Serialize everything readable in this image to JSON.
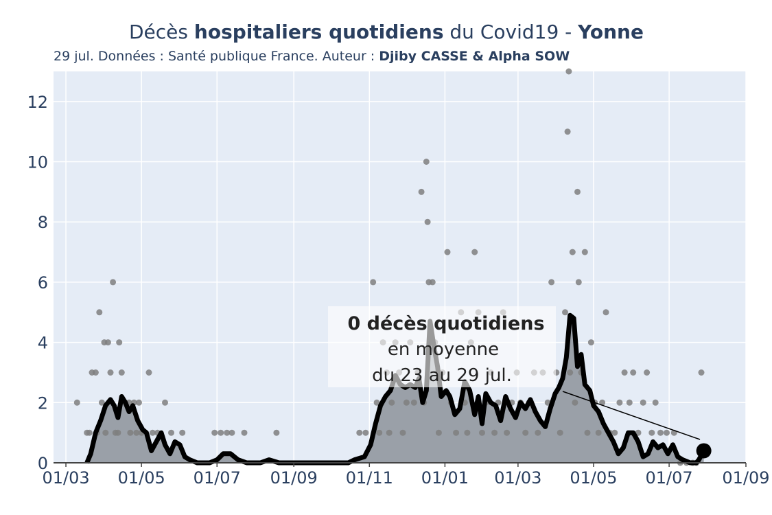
{
  "header": {
    "title_part1": "Décès ",
    "title_bold": "hospitaliers quotidiens",
    "title_part2": " du Covid19 - ",
    "title_region": "Yonne",
    "subtitle_part1": "29 jul. Données : Santé publique France. Auteur : ",
    "subtitle_authors": "Djiby CASSE & Alpha SOW"
  },
  "annotation": {
    "line1": "0 décès quotidiens",
    "line2": "en moyenne",
    "line3": "du 23 au 29 jul."
  },
  "colors": {
    "plot_bg": "#e5ecf6",
    "grid": "#ffffff",
    "area_fill": "#9aa0a8",
    "avg_line": "#000000",
    "dots": "#7f7f7f",
    "text": "#2a3f5f"
  },
  "chart_data": {
    "type": "area",
    "title": "Décès hospitaliers quotidiens du Covid19 - Yonne",
    "xlabel": "",
    "ylabel": "",
    "x_ticks": [
      {
        "date": "2020-03-01",
        "label": "01/03"
      },
      {
        "date": "2020-05-01",
        "label": "01/05"
      },
      {
        "date": "2020-07-01",
        "label": "01/07"
      },
      {
        "date": "2020-09-01",
        "label": "01/09"
      },
      {
        "date": "2020-11-01",
        "label": "01/11"
      },
      {
        "date": "2021-01-01",
        "label": "01/01"
      },
      {
        "date": "2021-03-01",
        "label": "01/03"
      },
      {
        "date": "2021-05-01",
        "label": "01/05"
      },
      {
        "date": "2021-07-01",
        "label": "01/07"
      },
      {
        "date": "2021-09-01",
        "label": "01/09"
      }
    ],
    "y_ticks": [
      0,
      2,
      4,
      6,
      8,
      10,
      12
    ],
    "xlim": [
      "2020-02-20",
      "2021-09-01"
    ],
    "ylim": [
      0,
      13
    ],
    "grid": true,
    "legend": "none",
    "series": [
      {
        "kind": "rolling_average",
        "points": [
          [
            "2020-03-18",
            0
          ],
          [
            "2020-03-21",
            0.3
          ],
          [
            "2020-03-25",
            1.0
          ],
          [
            "2020-03-29",
            1.4
          ],
          [
            "2020-04-02",
            1.9
          ],
          [
            "2020-04-06",
            2.1
          ],
          [
            "2020-04-09",
            1.9
          ],
          [
            "2020-04-12",
            1.5
          ],
          [
            "2020-04-15",
            2.2
          ],
          [
            "2020-04-18",
            2.0
          ],
          [
            "2020-04-21",
            1.7
          ],
          [
            "2020-04-24",
            1.9
          ],
          [
            "2020-04-28",
            1.4
          ],
          [
            "2020-05-02",
            1.1
          ],
          [
            "2020-05-05",
            1.0
          ],
          [
            "2020-05-09",
            0.4
          ],
          [
            "2020-05-13",
            0.7
          ],
          [
            "2020-05-17",
            1.0
          ],
          [
            "2020-05-20",
            0.6
          ],
          [
            "2020-05-24",
            0.3
          ],
          [
            "2020-05-28",
            0.7
          ],
          [
            "2020-06-01",
            0.6
          ],
          [
            "2020-06-05",
            0.2
          ],
          [
            "2020-06-09",
            0.1
          ],
          [
            "2020-06-15",
            0
          ],
          [
            "2020-06-25",
            0
          ],
          [
            "2020-07-01",
            0.1
          ],
          [
            "2020-07-06",
            0.3
          ],
          [
            "2020-07-12",
            0.3
          ],
          [
            "2020-07-18",
            0.1
          ],
          [
            "2020-07-25",
            0
          ],
          [
            "2020-08-05",
            0
          ],
          [
            "2020-08-12",
            0.1
          ],
          [
            "2020-08-20",
            0
          ],
          [
            "2020-10-15",
            0
          ],
          [
            "2020-10-20",
            0.1
          ],
          [
            "2020-10-28",
            0.2
          ],
          [
            "2020-11-02",
            0.6
          ],
          [
            "2020-11-06",
            1.3
          ],
          [
            "2020-11-10",
            1.9
          ],
          [
            "2020-11-14",
            2.2
          ],
          [
            "2020-11-18",
            2.4
          ],
          [
            "2020-11-22",
            2.9
          ],
          [
            "2020-11-26",
            2.6
          ],
          [
            "2020-11-30",
            2.5
          ],
          [
            "2020-12-04",
            2.6
          ],
          [
            "2020-12-08",
            2.5
          ],
          [
            "2020-12-11",
            2.8
          ],
          [
            "2020-12-14",
            2.0
          ],
          [
            "2020-12-17",
            2.4
          ],
          [
            "2020-12-20",
            4.7
          ],
          [
            "2020-12-23",
            3.9
          ],
          [
            "2020-12-26",
            3.2
          ],
          [
            "2020-12-29",
            2.2
          ],
          [
            "2021-01-02",
            2.4
          ],
          [
            "2021-01-05",
            2.2
          ],
          [
            "2021-01-09",
            1.6
          ],
          [
            "2021-01-13",
            1.8
          ],
          [
            "2021-01-17",
            2.7
          ],
          [
            "2021-01-21",
            2.4
          ],
          [
            "2021-01-25",
            1.6
          ],
          [
            "2021-01-28",
            2.2
          ],
          [
            "2021-01-31",
            1.3
          ],
          [
            "2021-02-03",
            2.3
          ],
          [
            "2021-02-07",
            2.0
          ],
          [
            "2021-02-11",
            1.9
          ],
          [
            "2021-02-15",
            1.4
          ],
          [
            "2021-02-19",
            2.2
          ],
          [
            "2021-02-23",
            1.8
          ],
          [
            "2021-02-27",
            1.5
          ],
          [
            "2021-03-03",
            2.0
          ],
          [
            "2021-03-07",
            1.8
          ],
          [
            "2021-03-11",
            2.1
          ],
          [
            "2021-03-15",
            1.7
          ],
          [
            "2021-03-19",
            1.4
          ],
          [
            "2021-03-23",
            1.2
          ],
          [
            "2021-03-27",
            1.8
          ],
          [
            "2021-03-31",
            2.3
          ],
          [
            "2021-04-03",
            2.5
          ],
          [
            "2021-04-06",
            2.8
          ],
          [
            "2021-04-09",
            3.5
          ],
          [
            "2021-04-12",
            4.9
          ],
          [
            "2021-04-15",
            4.8
          ],
          [
            "2021-04-18",
            3.2
          ],
          [
            "2021-04-21",
            3.6
          ],
          [
            "2021-04-24",
            2.6
          ],
          [
            "2021-04-28",
            2.4
          ],
          [
            "2021-05-01",
            1.9
          ],
          [
            "2021-05-05",
            1.7
          ],
          [
            "2021-05-09",
            1.3
          ],
          [
            "2021-05-13",
            1.0
          ],
          [
            "2021-05-17",
            0.7
          ],
          [
            "2021-05-21",
            0.3
          ],
          [
            "2021-05-25",
            0.5
          ],
          [
            "2021-05-29",
            1.0
          ],
          [
            "2021-06-02",
            1.0
          ],
          [
            "2021-06-06",
            0.7
          ],
          [
            "2021-06-10",
            0.2
          ],
          [
            "2021-06-14",
            0.3
          ],
          [
            "2021-06-18",
            0.7
          ],
          [
            "2021-06-22",
            0.5
          ],
          [
            "2021-06-26",
            0.6
          ],
          [
            "2021-06-30",
            0.3
          ],
          [
            "2021-07-04",
            0.6
          ],
          [
            "2021-07-08",
            0.2
          ],
          [
            "2021-07-12",
            0.1
          ],
          [
            "2021-07-18",
            0
          ],
          [
            "2021-07-23",
            0
          ],
          [
            "2021-07-25",
            0.1
          ],
          [
            "2021-07-29",
            0.4
          ]
        ]
      },
      {
        "kind": "daily_deaths",
        "points": [
          [
            "2020-03-10",
            2
          ],
          [
            "2020-03-18",
            1
          ],
          [
            "2020-03-20",
            1
          ],
          [
            "2020-03-22",
            3
          ],
          [
            "2020-03-25",
            3
          ],
          [
            "2020-03-28",
            5
          ],
          [
            "2020-03-30",
            2
          ],
          [
            "2020-04-01",
            4
          ],
          [
            "2020-04-04",
            4
          ],
          [
            "2020-04-06",
            3
          ],
          [
            "2020-04-08",
            6
          ],
          [
            "2020-04-10",
            1
          ],
          [
            "2020-04-13",
            4
          ],
          [
            "2020-04-15",
            3
          ],
          [
            "2020-04-18",
            2
          ],
          [
            "2020-04-21",
            2
          ],
          [
            "2020-04-25",
            2
          ],
          [
            "2020-04-29",
            2
          ],
          [
            "2020-05-07",
            3
          ],
          [
            "2020-05-10",
            1
          ],
          [
            "2020-05-20",
            2
          ],
          [
            "2020-05-25",
            1
          ],
          [
            "2020-06-03",
            1
          ],
          [
            "2020-03-26",
            1
          ],
          [
            "2020-04-02",
            1
          ],
          [
            "2020-04-12",
            1
          ],
          [
            "2020-04-22",
            1
          ],
          [
            "2020-04-27",
            1
          ],
          [
            "2020-05-01",
            1
          ],
          [
            "2020-05-14",
            1
          ],
          [
            "2020-06-29",
            1
          ],
          [
            "2020-07-04",
            1
          ],
          [
            "2020-07-09",
            1
          ],
          [
            "2020-07-13",
            1
          ],
          [
            "2020-07-23",
            1
          ],
          [
            "2020-08-18",
            1
          ],
          [
            "2020-10-24",
            1
          ],
          [
            "2020-10-29",
            1
          ],
          [
            "2020-11-04",
            6
          ],
          [
            "2020-11-07",
            2
          ],
          [
            "2020-11-09",
            1
          ],
          [
            "2020-11-12",
            4
          ],
          [
            "2020-11-15",
            3
          ],
          [
            "2020-11-17",
            1
          ],
          [
            "2020-11-19",
            2
          ],
          [
            "2020-11-22",
            4
          ],
          [
            "2020-11-25",
            3
          ],
          [
            "2020-11-28",
            1
          ],
          [
            "2020-12-01",
            2
          ],
          [
            "2020-12-04",
            4
          ],
          [
            "2020-12-07",
            2
          ],
          [
            "2020-12-10",
            3
          ],
          [
            "2020-12-13",
            9
          ],
          [
            "2020-12-15",
            2
          ],
          [
            "2020-12-17",
            10
          ],
          [
            "2020-12-18",
            8
          ],
          [
            "2020-12-19",
            6
          ],
          [
            "2020-12-22",
            6
          ],
          [
            "2020-12-24",
            4
          ],
          [
            "2020-12-27",
            1
          ],
          [
            "2020-12-30",
            3
          ],
          [
            "2021-01-03",
            7
          ],
          [
            "2021-01-06",
            2
          ],
          [
            "2021-01-10",
            1
          ],
          [
            "2021-01-14",
            5
          ],
          [
            "2021-01-17",
            2
          ],
          [
            "2021-01-19",
            1
          ],
          [
            "2021-01-22",
            4
          ],
          [
            "2021-01-25",
            7
          ],
          [
            "2021-01-28",
            5
          ],
          [
            "2021-01-31",
            1
          ],
          [
            "2021-02-03",
            2
          ],
          [
            "2021-02-07",
            3
          ],
          [
            "2021-02-10",
            1
          ],
          [
            "2021-02-13",
            2
          ],
          [
            "2021-02-17",
            5
          ],
          [
            "2021-02-20",
            1
          ],
          [
            "2021-02-24",
            2
          ],
          [
            "2021-02-28",
            3
          ],
          [
            "2021-03-03",
            2
          ],
          [
            "2021-03-07",
            1
          ],
          [
            "2021-03-10",
            2
          ],
          [
            "2021-03-14",
            3
          ],
          [
            "2021-03-17",
            1
          ],
          [
            "2021-03-21",
            3
          ],
          [
            "2021-03-25",
            2
          ],
          [
            "2021-03-28",
            6
          ],
          [
            "2021-04-01",
            3
          ],
          [
            "2021-04-04",
            1
          ],
          [
            "2021-04-08",
            5
          ],
          [
            "2021-04-10",
            11
          ],
          [
            "2021-04-11",
            13
          ],
          [
            "2021-04-12",
            3
          ],
          [
            "2021-04-14",
            7
          ],
          [
            "2021-04-16",
            2
          ],
          [
            "2021-04-18",
            9
          ],
          [
            "2021-04-19",
            6
          ],
          [
            "2021-04-21",
            3
          ],
          [
            "2021-04-24",
            7
          ],
          [
            "2021-04-26",
            1
          ],
          [
            "2021-04-29",
            4
          ],
          [
            "2021-05-02",
            2
          ],
          [
            "2021-05-05",
            1
          ],
          [
            "2021-05-08",
            2
          ],
          [
            "2021-05-11",
            5
          ],
          [
            "2021-05-14",
            1
          ],
          [
            "2021-05-18",
            1
          ],
          [
            "2021-05-22",
            2
          ],
          [
            "2021-05-26",
            3
          ],
          [
            "2021-05-30",
            2
          ],
          [
            "2021-06-02",
            3
          ],
          [
            "2021-06-06",
            1
          ],
          [
            "2021-06-10",
            2
          ],
          [
            "2021-06-13",
            3
          ],
          [
            "2021-06-17",
            1
          ],
          [
            "2021-06-20",
            2
          ],
          [
            "2021-06-24",
            1
          ],
          [
            "2021-06-29",
            1
          ],
          [
            "2021-07-05",
            1
          ],
          [
            "2021-07-27",
            3
          ],
          [
            "2021-07-10",
            0
          ],
          [
            "2021-07-15",
            0
          ],
          [
            "2021-07-20",
            0
          ],
          [
            "2021-07-23",
            0
          ]
        ]
      }
    ],
    "last_point": [
      "2021-07-29",
      0.4
    ]
  }
}
